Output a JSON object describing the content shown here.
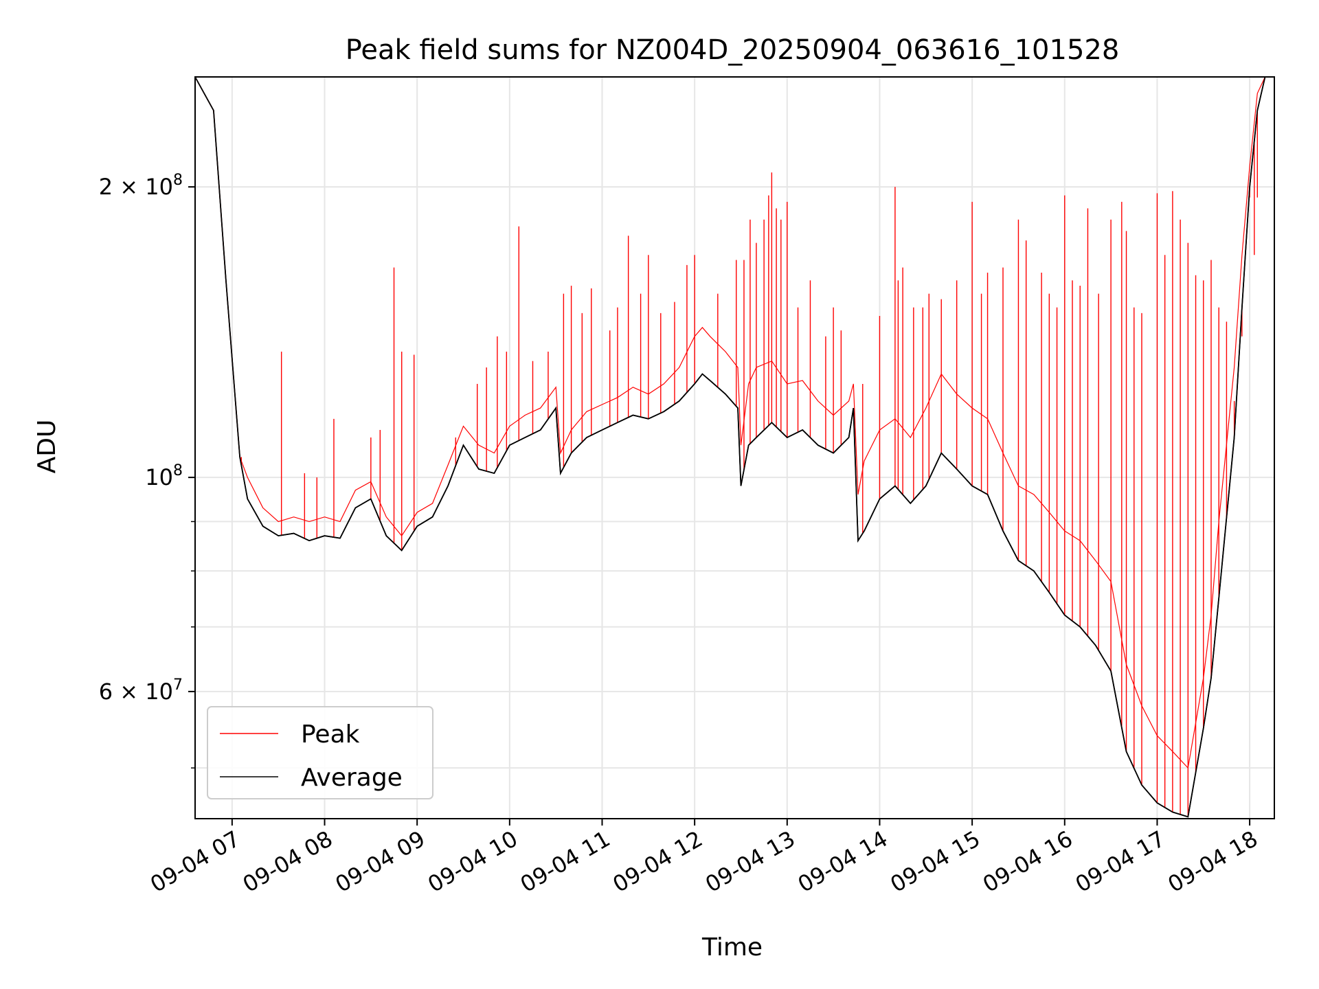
{
  "chart_data": {
    "type": "line",
    "title": "Peak field sums for NZ004D_20250904_063616_101528",
    "xlabel": "Time",
    "ylabel": "ADU",
    "yscale": "log",
    "ylim": [
      44300000,
      260000000
    ],
    "xlim": [
      "09-04 06:36",
      "09-04 18:16"
    ],
    "grid": true,
    "legend_position": "lower-left",
    "x_ticks": [
      "09-04 07",
      "09-04 08",
      "09-04 09",
      "09-04 10",
      "09-04 11",
      "09-04 12",
      "09-04 13",
      "09-04 14",
      "09-04 15",
      "09-04 16",
      "09-04 17",
      "09-04 18"
    ],
    "y_major_ticks": [
      {
        "value": 60000000,
        "mantissa": "6",
        "exponent": "7"
      },
      {
        "value": 100000000,
        "mantissa": "",
        "exponent": "8"
      },
      {
        "value": 200000000,
        "mantissa": "2",
        "exponent": "8"
      }
    ],
    "y_minor_ticks": [
      50000000,
      70000000,
      80000000,
      90000000
    ],
    "series": [
      {
        "name": "Average",
        "color": "#000000",
        "x": [
          "09-04 06:36",
          "09-04 06:48",
          "09-04 06:56",
          "09-04 07:05",
          "09-04 07:10",
          "09-04 07:20",
          "09-04 07:30",
          "09-04 07:40",
          "09-04 07:50",
          "09-04 08:00",
          "09-04 08:10",
          "09-04 08:20",
          "09-04 08:30",
          "09-04 08:40",
          "09-04 08:50",
          "09-04 09:00",
          "09-04 09:10",
          "09-04 09:20",
          "09-04 09:30",
          "09-04 09:40",
          "09-04 09:50",
          "09-04 10:00",
          "09-04 10:10",
          "09-04 10:20",
          "09-04 10:30",
          "09-04 10:33",
          "09-04 10:40",
          "09-04 10:50",
          "09-04 11:00",
          "09-04 11:10",
          "09-04 11:20",
          "09-04 11:30",
          "09-04 11:40",
          "09-04 11:50",
          "09-04 12:00",
          "09-04 12:05",
          "09-04 12:10",
          "09-04 12:20",
          "09-04 12:28",
          "09-04 12:30",
          "09-04 12:35",
          "09-04 12:40",
          "09-04 12:50",
          "09-04 13:00",
          "09-04 13:10",
          "09-04 13:20",
          "09-04 13:30",
          "09-04 13:40",
          "09-04 13:43",
          "09-04 13:46",
          "09-04 13:50",
          "09-04 14:00",
          "09-04 14:10",
          "09-04 14:20",
          "09-04 14:30",
          "09-04 14:40",
          "09-04 14:50",
          "09-04 15:00",
          "09-04 15:10",
          "09-04 15:20",
          "09-04 15:30",
          "09-04 15:40",
          "09-04 15:50",
          "09-04 16:00",
          "09-04 16:10",
          "09-04 16:20",
          "09-04 16:30",
          "09-04 16:40",
          "09-04 16:50",
          "09-04 17:00",
          "09-04 17:10",
          "09-04 17:20",
          "09-04 17:30",
          "09-04 17:35",
          "09-04 17:40",
          "09-04 17:50",
          "09-04 17:55",
          "09-04 18:00",
          "09-04 18:05",
          "09-04 18:10",
          "09-04 18:14"
        ],
        "values": [
          260000000,
          240000000,
          160000000,
          105000000,
          95000000,
          89000000,
          87000000,
          87500000,
          86000000,
          87000000,
          86500000,
          93000000,
          95000000,
          87000000,
          84000000,
          89000000,
          91000000,
          98000000,
          108000000,
          102000000,
          101000000,
          108000000,
          110000000,
          112000000,
          118000000,
          101000000,
          106000000,
          110000000,
          112000000,
          114000000,
          116000000,
          115000000,
          117000000,
          120000000,
          125000000,
          128000000,
          126000000,
          122000000,
          118000000,
          98000000,
          108000000,
          110000000,
          114000000,
          110000000,
          112000000,
          108000000,
          106000000,
          110000000,
          118000000,
          86000000,
          88000000,
          95000000,
          98000000,
          94000000,
          98000000,
          106000000,
          102000000,
          98000000,
          96000000,
          88000000,
          82000000,
          80000000,
          76000000,
          72000000,
          70000000,
          67000000,
          63000000,
          52000000,
          48000000,
          46000000,
          45000000,
          44500000,
          55000000,
          62000000,
          75000000,
          110000000,
          150000000,
          200000000,
          240000000,
          260000000,
          260000000
        ]
      },
      {
        "name": "Peak",
        "color": "#ff0000",
        "x": [
          "09-04 06:36",
          "09-04 06:48",
          "09-04 06:56",
          "09-04 07:05",
          "09-04 07:10",
          "09-04 07:20",
          "09-04 07:30",
          "09-04 07:40",
          "09-04 07:50",
          "09-04 08:00",
          "09-04 08:10",
          "09-04 08:20",
          "09-04 08:30",
          "09-04 08:40",
          "09-04 08:50",
          "09-04 09:00",
          "09-04 09:10",
          "09-04 09:20",
          "09-04 09:30",
          "09-04 09:40",
          "09-04 09:50",
          "09-04 10:00",
          "09-04 10:10",
          "09-04 10:20",
          "09-04 10:30",
          "09-04 10:33",
          "09-04 10:40",
          "09-04 10:50",
          "09-04 11:00",
          "09-04 11:10",
          "09-04 11:20",
          "09-04 11:30",
          "09-04 11:40",
          "09-04 11:50",
          "09-04 12:00",
          "09-04 12:05",
          "09-04 12:10",
          "09-04 12:20",
          "09-04 12:28",
          "09-04 12:30",
          "09-04 12:35",
          "09-04 12:40",
          "09-04 12:50",
          "09-04 13:00",
          "09-04 13:10",
          "09-04 13:20",
          "09-04 13:30",
          "09-04 13:40",
          "09-04 13:43",
          "09-04 13:46",
          "09-04 13:50",
          "09-04 14:00",
          "09-04 14:10",
          "09-04 14:20",
          "09-04 14:30",
          "09-04 14:40",
          "09-04 14:50",
          "09-04 15:00",
          "09-04 15:10",
          "09-04 15:20",
          "09-04 15:30",
          "09-04 15:40",
          "09-04 15:50",
          "09-04 16:00",
          "09-04 16:10",
          "09-04 16:20",
          "09-04 16:30",
          "09-04 16:40",
          "09-04 16:50",
          "09-04 17:00",
          "09-04 17:10",
          "09-04 17:20",
          "09-04 17:30",
          "09-04 17:35",
          "09-04 17:40",
          "09-04 17:50",
          "09-04 17:55",
          "09-04 18:00",
          "09-04 18:05",
          "09-04 18:10",
          "09-04 18:14"
        ],
        "values": [
          260000000,
          240000000,
          160000000,
          105000000,
          100000000,
          93000000,
          90000000,
          91000000,
          90000000,
          91000000,
          90000000,
          97000000,
          99000000,
          91000000,
          87000000,
          92000000,
          94000000,
          103000000,
          113000000,
          108000000,
          106000000,
          113000000,
          116000000,
          118000000,
          124000000,
          106000000,
          112000000,
          117000000,
          119000000,
          121000000,
          124000000,
          122000000,
          125000000,
          130000000,
          140000000,
          143000000,
          140000000,
          135000000,
          130000000,
          108000000,
          125000000,
          130000000,
          132000000,
          125000000,
          126000000,
          120000000,
          116000000,
          120000000,
          125000000,
          96000000,
          104000000,
          112000000,
          115000000,
          110000000,
          118000000,
          128000000,
          122000000,
          118000000,
          115000000,
          106000000,
          98000000,
          96000000,
          92000000,
          88000000,
          86000000,
          82000000,
          78000000,
          64000000,
          58000000,
          54000000,
          52000000,
          50000000,
          62000000,
          72000000,
          90000000,
          130000000,
          170000000,
          210000000,
          250000000,
          260000000,
          260000000
        ],
        "spikes": [
          {
            "x": "09-04 07:06",
            "y": 105000000
          },
          {
            "x": "09-04 07:32",
            "y": 135000000
          },
          {
            "x": "09-04 07:47",
            "y": 101000000
          },
          {
            "x": "09-04 07:55",
            "y": 100000000
          },
          {
            "x": "09-04 08:06",
            "y": 115000000
          },
          {
            "x": "09-04 08:30",
            "y": 110000000
          },
          {
            "x": "09-04 08:36",
            "y": 112000000
          },
          {
            "x": "09-04 08:45",
            "y": 165000000
          },
          {
            "x": "09-04 08:50",
            "y": 135000000
          },
          {
            "x": "09-04 08:58",
            "y": 134000000
          },
          {
            "x": "09-04 09:25",
            "y": 110000000
          },
          {
            "x": "09-04 09:39",
            "y": 125000000
          },
          {
            "x": "09-04 09:45",
            "y": 130000000
          },
          {
            "x": "09-04 09:52",
            "y": 140000000
          },
          {
            "x": "09-04 09:58",
            "y": 135000000
          },
          {
            "x": "09-04 10:06",
            "y": 182000000
          },
          {
            "x": "09-04 10:15",
            "y": 132000000
          },
          {
            "x": "09-04 10:25",
            "y": 135000000
          },
          {
            "x": "09-04 10:35",
            "y": 155000000
          },
          {
            "x": "09-04 10:40",
            "y": 158000000
          },
          {
            "x": "09-04 10:47",
            "y": 148000000
          },
          {
            "x": "09-04 10:53",
            "y": 157000000
          },
          {
            "x": "09-04 11:05",
            "y": 142000000
          },
          {
            "x": "09-04 11:10",
            "y": 150000000
          },
          {
            "x": "09-04 11:17",
            "y": 178000000
          },
          {
            "x": "09-04 11:25",
            "y": 155000000
          },
          {
            "x": "09-04 11:30",
            "y": 170000000
          },
          {
            "x": "09-04 11:38",
            "y": 148000000
          },
          {
            "x": "09-04 11:47",
            "y": 152000000
          },
          {
            "x": "09-04 11:55",
            "y": 166000000
          },
          {
            "x": "09-04 12:00",
            "y": 170000000
          },
          {
            "x": "09-04 12:15",
            "y": 155000000
          },
          {
            "x": "09-04 12:27",
            "y": 168000000
          },
          {
            "x": "09-04 12:32",
            "y": 168000000
          },
          {
            "x": "09-04 12:36",
            "y": 185000000
          },
          {
            "x": "09-04 12:40",
            "y": 175000000
          },
          {
            "x": "09-04 12:45",
            "y": 185000000
          },
          {
            "x": "09-04 12:48",
            "y": 196000000
          },
          {
            "x": "09-04 12:50",
            "y": 207000000
          },
          {
            "x": "09-04 12:53",
            "y": 190000000
          },
          {
            "x": "09-04 12:56",
            "y": 185000000
          },
          {
            "x": "09-04 13:00",
            "y": 193000000
          },
          {
            "x": "09-04 13:07",
            "y": 150000000
          },
          {
            "x": "09-04 13:15",
            "y": 160000000
          },
          {
            "x": "09-04 13:25",
            "y": 140000000
          },
          {
            "x": "09-04 13:30",
            "y": 150000000
          },
          {
            "x": "09-04 13:35",
            "y": 142000000
          },
          {
            "x": "09-04 13:49",
            "y": 125000000
          },
          {
            "x": "09-04 14:00",
            "y": 147000000
          },
          {
            "x": "09-04 14:10",
            "y": 200000000
          },
          {
            "x": "09-04 14:12",
            "y": 160000000
          },
          {
            "x": "09-04 14:15",
            "y": 165000000
          },
          {
            "x": "09-04 14:22",
            "y": 150000000
          },
          {
            "x": "09-04 14:28",
            "y": 150000000
          },
          {
            "x": "09-04 14:32",
            "y": 155000000
          },
          {
            "x": "09-04 14:40",
            "y": 153000000
          },
          {
            "x": "09-04 14:50",
            "y": 160000000
          },
          {
            "x": "09-04 15:00",
            "y": 193000000
          },
          {
            "x": "09-04 15:06",
            "y": 155000000
          },
          {
            "x": "09-04 15:10",
            "y": 163000000
          },
          {
            "x": "09-04 15:20",
            "y": 165000000
          },
          {
            "x": "09-04 15:30",
            "y": 185000000
          },
          {
            "x": "09-04 15:35",
            "y": 176000000
          },
          {
            "x": "09-04 15:45",
            "y": 163000000
          },
          {
            "x": "09-04 15:50",
            "y": 155000000
          },
          {
            "x": "09-04 15:55",
            "y": 150000000
          },
          {
            "x": "09-04 16:00",
            "y": 196000000
          },
          {
            "x": "09-04 16:05",
            "y": 160000000
          },
          {
            "x": "09-04 16:10",
            "y": 158000000
          },
          {
            "x": "09-04 16:15",
            "y": 190000000
          },
          {
            "x": "09-04 16:22",
            "y": 155000000
          },
          {
            "x": "09-04 16:30",
            "y": 185000000
          },
          {
            "x": "09-04 16:37",
            "y": 193000000
          },
          {
            "x": "09-04 16:40",
            "y": 180000000
          },
          {
            "x": "09-04 16:45",
            "y": 150000000
          },
          {
            "x": "09-04 16:50",
            "y": 148000000
          },
          {
            "x": "09-04 17:00",
            "y": 197000000
          },
          {
            "x": "09-04 17:05",
            "y": 170000000
          },
          {
            "x": "09-04 17:10",
            "y": 198000000
          },
          {
            "x": "09-04 17:15",
            "y": 185000000
          },
          {
            "x": "09-04 17:20",
            "y": 175000000
          },
          {
            "x": "09-04 17:25",
            "y": 162000000
          },
          {
            "x": "09-04 17:30",
            "y": 160000000
          },
          {
            "x": "09-04 17:35",
            "y": 168000000
          },
          {
            "x": "09-04 17:40",
            "y": 150000000
          },
          {
            "x": "09-04 17:45",
            "y": 145000000
          },
          {
            "x": "09-04 17:50",
            "y": 120000000
          },
          {
            "x": "09-04 17:55",
            "y": 140000000
          },
          {
            "x": "09-04 18:00",
            "y": 195000000
          },
          {
            "x": "09-04 18:03",
            "y": 170000000
          },
          {
            "x": "09-04 18:05",
            "y": 195000000
          }
        ]
      }
    ]
  }
}
